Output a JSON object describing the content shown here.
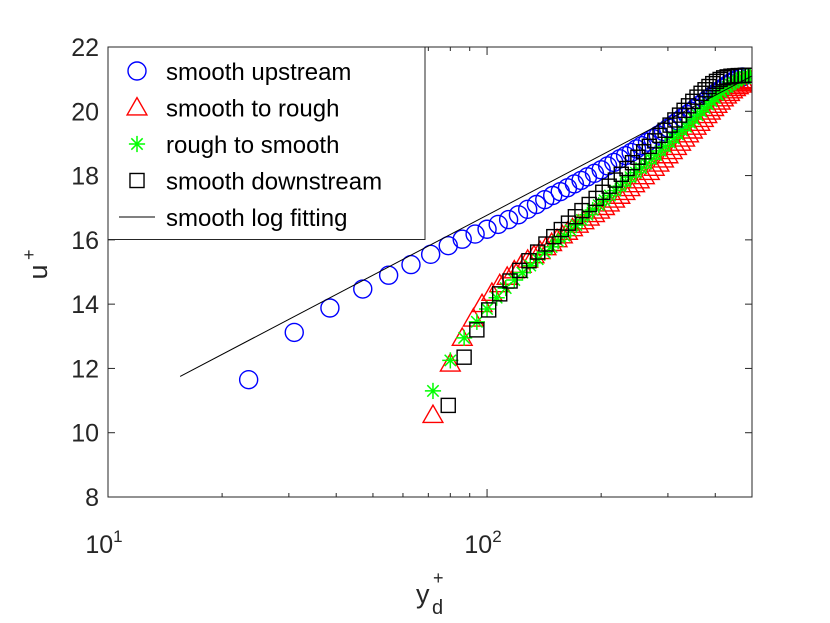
{
  "chart_data": {
    "type": "scatter",
    "x_scale": "log",
    "xlim": [
      10,
      500
    ],
    "ylim": [
      8,
      22
    ],
    "xlabel": "y",
    "xlabel_sup": "+",
    "xlabel_sub": "d",
    "ylabel": "u",
    "ylabel_sup": "+",
    "x_ticks": [
      {
        "value": 10,
        "base": "10",
        "exp": "1"
      },
      {
        "value": 100,
        "base": "10",
        "exp": "2"
      }
    ],
    "y_ticks": [
      {
        "value": 8,
        "label": "8"
      },
      {
        "value": 10,
        "label": "10"
      },
      {
        "value": 12,
        "label": "12"
      },
      {
        "value": 14,
        "label": "14"
      },
      {
        "value": 16,
        "label": "16"
      },
      {
        "value": 18,
        "label": "18"
      },
      {
        "value": 20,
        "label": "20"
      },
      {
        "value": 22,
        "label": "22"
      }
    ],
    "grid": false,
    "legend_position": "top-left",
    "series": [
      {
        "name": "smooth upstream",
        "marker": "circle",
        "color": "#0000ff",
        "points": [
          [
            23.5,
            11.65
          ],
          [
            31,
            13.12
          ],
          [
            38.5,
            13.88
          ],
          [
            47,
            14.47
          ],
          [
            55,
            14.9
          ],
          [
            63,
            15.23
          ],
          [
            71,
            15.55
          ],
          [
            79,
            15.82
          ],
          [
            86,
            16.02
          ],
          [
            93,
            16.18
          ],
          [
            100,
            16.33
          ],
          [
            107,
            16.48
          ],
          [
            114,
            16.63
          ],
          [
            121,
            16.78
          ],
          [
            128,
            16.95
          ],
          [
            135,
            17.1
          ],
          [
            142,
            17.25
          ],
          [
            149,
            17.38
          ],
          [
            156,
            17.5
          ],
          [
            163,
            17.62
          ],
          [
            170,
            17.74
          ],
          [
            177,
            17.85
          ],
          [
            184,
            17.96
          ],
          [
            192,
            18.07
          ],
          [
            200,
            18.18
          ],
          [
            208,
            18.3
          ],
          [
            216,
            18.41
          ],
          [
            224,
            18.52
          ],
          [
            232,
            18.62
          ],
          [
            240,
            18.72
          ],
          [
            248,
            18.83
          ],
          [
            256,
            18.93
          ],
          [
            265,
            19.04
          ],
          [
            274,
            19.15
          ],
          [
            283,
            19.26
          ],
          [
            292,
            19.37
          ],
          [
            301,
            19.48
          ],
          [
            310,
            19.59
          ],
          [
            319,
            19.7
          ],
          [
            328,
            19.8
          ],
          [
            337,
            19.9
          ],
          [
            346,
            20.0
          ],
          [
            355,
            20.1
          ],
          [
            364,
            20.2
          ],
          [
            373,
            20.29
          ],
          [
            382,
            20.38
          ],
          [
            391,
            20.47
          ],
          [
            400,
            20.56
          ],
          [
            409,
            20.64
          ],
          [
            418,
            20.72
          ],
          [
            427,
            20.8
          ],
          [
            436,
            20.87
          ],
          [
            445,
            20.93
          ],
          [
            454,
            20.98
          ],
          [
            463,
            21.03
          ],
          [
            472,
            21.07
          ]
        ]
      },
      {
        "name": "smooth to rough",
        "marker": "triangle",
        "color": "#ff0000",
        "points": [
          [
            72,
            10.55
          ],
          [
            80,
            12.15
          ],
          [
            86,
            12.95
          ],
          [
            92,
            13.55
          ],
          [
            97,
            14.0
          ],
          [
            103,
            14.35
          ],
          [
            108,
            14.62
          ],
          [
            113,
            14.85
          ],
          [
            118,
            15.05
          ],
          [
            123,
            15.22
          ],
          [
            128,
            15.38
          ],
          [
            133,
            15.52
          ],
          [
            138,
            15.65
          ],
          [
            143,
            15.77
          ],
          [
            148,
            15.9
          ],
          [
            153,
            16.02
          ],
          [
            158,
            16.14
          ],
          [
            163,
            16.25
          ],
          [
            168,
            16.36
          ],
          [
            174,
            16.47
          ],
          [
            180,
            16.58
          ],
          [
            186,
            16.69
          ],
          [
            192,
            16.8
          ],
          [
            198,
            16.91
          ],
          [
            204,
            17.02
          ],
          [
            210,
            17.13
          ],
          [
            217,
            17.25
          ],
          [
            224,
            17.37
          ],
          [
            231,
            17.49
          ],
          [
            238,
            17.61
          ],
          [
            245,
            17.73
          ],
          [
            252,
            17.85
          ],
          [
            260,
            17.98
          ],
          [
            268,
            18.11
          ],
          [
            276,
            18.24
          ],
          [
            284,
            18.37
          ],
          [
            292,
            18.5
          ],
          [
            300,
            18.63
          ],
          [
            308,
            18.76
          ],
          [
            316,
            18.89
          ],
          [
            324,
            19.02
          ],
          [
            332,
            19.15
          ],
          [
            340,
            19.28
          ],
          [
            348,
            19.4
          ],
          [
            356,
            19.52
          ],
          [
            364,
            19.64
          ],
          [
            372,
            19.76
          ],
          [
            380,
            19.88
          ],
          [
            388,
            19.99
          ],
          [
            396,
            20.1
          ],
          [
            404,
            20.2
          ],
          [
            412,
            20.3
          ],
          [
            420,
            20.4
          ],
          [
            428,
            20.49
          ],
          [
            436,
            20.57
          ],
          [
            444,
            20.65
          ],
          [
            452,
            20.72
          ],
          [
            460,
            20.78
          ],
          [
            468,
            20.83
          ],
          [
            476,
            20.88
          ],
          [
            484,
            20.92
          ],
          [
            492,
            20.95
          ],
          [
            500,
            20.97
          ]
        ]
      },
      {
        "name": "rough to smooth",
        "marker": "asterisk",
        "color": "#00ff00",
        "points": [
          [
            72,
            11.3
          ],
          [
            80,
            12.25
          ],
          [
            87,
            12.95
          ],
          [
            94,
            13.45
          ],
          [
            100,
            13.85
          ],
          [
            106,
            14.2
          ],
          [
            112,
            14.5
          ],
          [
            118,
            14.75
          ],
          [
            124,
            14.98
          ],
          [
            130,
            15.2
          ],
          [
            136,
            15.4
          ],
          [
            142,
            15.6
          ],
          [
            148,
            15.78
          ],
          [
            154,
            15.96
          ],
          [
            160,
            16.13
          ],
          [
            166,
            16.3
          ],
          [
            172,
            16.46
          ],
          [
            178,
            16.62
          ],
          [
            184,
            16.78
          ],
          [
            190,
            16.93
          ],
          [
            197,
            17.08
          ],
          [
            204,
            17.23
          ],
          [
            211,
            17.38
          ],
          [
            218,
            17.53
          ],
          [
            225,
            17.67
          ],
          [
            232,
            17.81
          ],
          [
            239,
            17.95
          ],
          [
            247,
            18.09
          ],
          [
            255,
            18.23
          ],
          [
            263,
            18.37
          ],
          [
            271,
            18.51
          ],
          [
            279,
            18.64
          ],
          [
            287,
            18.77
          ],
          [
            295,
            18.9
          ],
          [
            303,
            19.03
          ],
          [
            311,
            19.16
          ],
          [
            319,
            19.28
          ],
          [
            327,
            19.4
          ],
          [
            335,
            19.52
          ],
          [
            343,
            19.64
          ],
          [
            351,
            19.76
          ],
          [
            359,
            19.88
          ],
          [
            367,
            19.99
          ],
          [
            375,
            20.1
          ],
          [
            383,
            20.21
          ],
          [
            391,
            20.31
          ],
          [
            399,
            20.41
          ],
          [
            407,
            20.51
          ],
          [
            415,
            20.6
          ],
          [
            423,
            20.68
          ],
          [
            431,
            20.76
          ],
          [
            439,
            20.83
          ],
          [
            447,
            20.89
          ],
          [
            455,
            20.95
          ],
          [
            463,
            21.0
          ],
          [
            471,
            21.04
          ],
          [
            479,
            21.07
          ],
          [
            487,
            21.09
          ],
          [
            495,
            21.1
          ]
        ]
      },
      {
        "name": "smooth downstream",
        "marker": "square",
        "color": "#000000",
        "points": [
          [
            79,
            10.85
          ],
          [
            87,
            12.35
          ],
          [
            94,
            13.2
          ],
          [
            101,
            13.82
          ],
          [
            108,
            14.32
          ],
          [
            115,
            14.72
          ],
          [
            122,
            15.05
          ],
          [
            129,
            15.35
          ],
          [
            136,
            15.62
          ],
          [
            143,
            15.87
          ],
          [
            150,
            16.1
          ],
          [
            157,
            16.32
          ],
          [
            164,
            16.52
          ],
          [
            171,
            16.72
          ],
          [
            178,
            16.91
          ],
          [
            186,
            17.1
          ],
          [
            194,
            17.29
          ],
          [
            202,
            17.48
          ],
          [
            210,
            17.67
          ],
          [
            218,
            17.86
          ],
          [
            226,
            18.04
          ],
          [
            234,
            18.22
          ],
          [
            242,
            18.4
          ],
          [
            250,
            18.57
          ],
          [
            259,
            18.74
          ],
          [
            268,
            18.91
          ],
          [
            277,
            19.08
          ],
          [
            286,
            19.25
          ],
          [
            295,
            19.41
          ],
          [
            304,
            19.57
          ],
          [
            313,
            19.73
          ],
          [
            322,
            19.88
          ],
          [
            331,
            20.03
          ],
          [
            340,
            20.17
          ],
          [
            349,
            20.31
          ],
          [
            358,
            20.44
          ],
          [
            367,
            20.56
          ],
          [
            376,
            20.67
          ],
          [
            385,
            20.77
          ],
          [
            394,
            20.86
          ],
          [
            403,
            20.93
          ],
          [
            412,
            20.99
          ],
          [
            421,
            21.04
          ],
          [
            430,
            21.07
          ],
          [
            440,
            21.09
          ],
          [
            450,
            21.1
          ],
          [
            460,
            21.11
          ],
          [
            470,
            21.11
          ],
          [
            480,
            21.12
          ],
          [
            490,
            21.12
          ]
        ]
      },
      {
        "name": "smooth log fitting",
        "marker": "line",
        "color": "#000000",
        "points": [
          [
            15.5,
            11.75
          ],
          [
            500,
            21.1
          ]
        ]
      }
    ]
  }
}
